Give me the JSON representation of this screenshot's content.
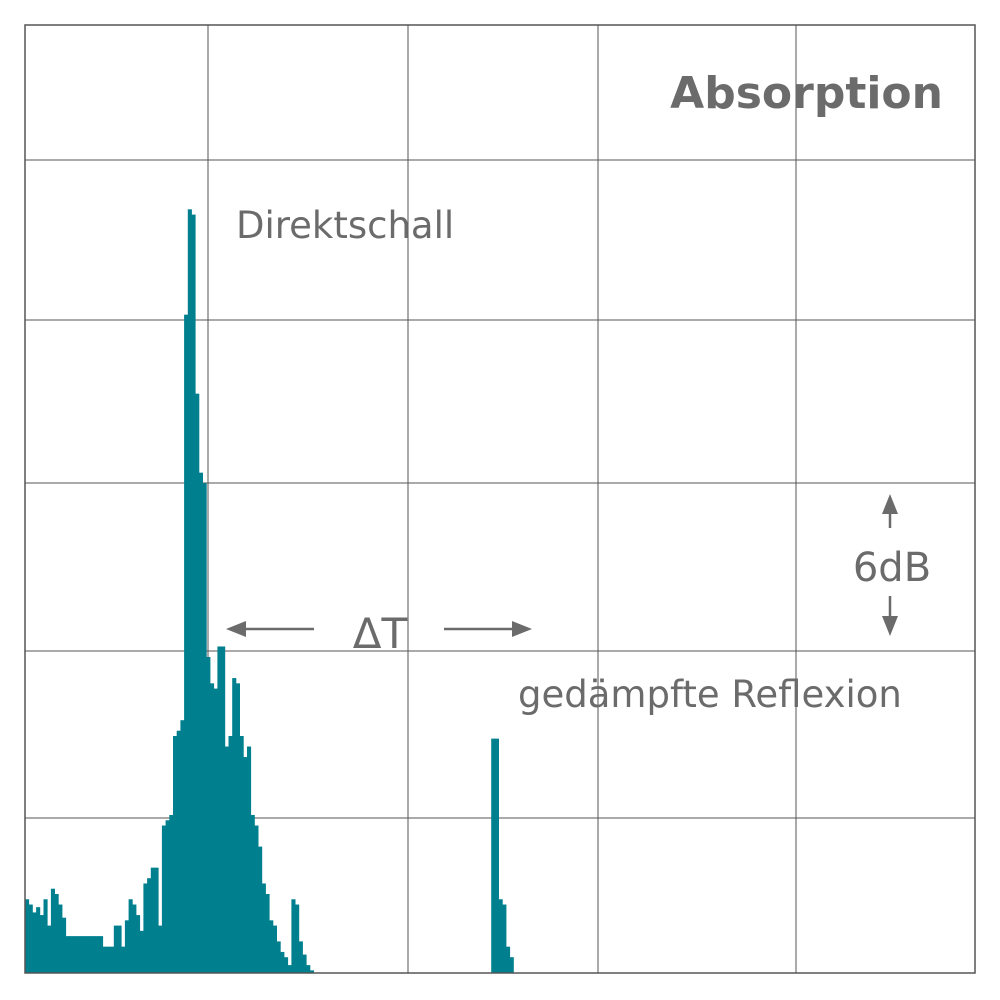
{
  "chart_data": {
    "type": "bar",
    "title": "Absorption",
    "xlabel": "",
    "ylabel": "",
    "grid": true,
    "grid_columns": 5,
    "grid_rows": 6,
    "xlim": [
      0,
      160
    ],
    "ylim": [
      0,
      36
    ],
    "bar_color": "#00808f",
    "values": [
      2.8,
      2.6,
      2.3,
      2.5,
      2.2,
      2.8,
      1.8,
      3.2,
      3.0,
      2.6,
      2.1,
      1.4,
      1.4,
      1.4,
      1.4,
      1.4,
      1.4,
      1.4,
      1.4,
      1.4,
      1.4,
      1.0,
      1.0,
      1.0,
      1.8,
      1.8,
      1.0,
      2.0,
      2.8,
      2.6,
      2.2,
      1.6,
      3.4,
      3.6,
      4.0,
      4.0,
      1.8,
      5.6,
      5.8,
      6.0,
      9.0,
      9.2,
      9.6,
      25.0,
      29.0,
      28.8,
      22.0,
      19.0,
      18.6,
      12.0,
      11.0,
      10.8,
      12.4,
      12.4,
      8.6,
      9.0,
      11.2,
      11.0,
      9.0,
      8.2,
      8.6,
      6.0,
      5.6,
      4.8,
      3.4,
      3.0,
      2.0,
      1.8,
      1.2,
      0.8,
      0.6,
      0.3,
      2.8,
      2.6,
      1.2,
      0.7,
      0.3,
      0.1,
      0.0,
      0.0,
      0.0,
      0.0,
      0.0,
      0.0,
      0.0,
      0.0,
      0.0,
      0.0,
      0.0,
      0.0,
      0.0,
      0.0,
      0.0,
      0.0,
      0.0,
      0.0,
      0.0,
      0.0,
      0.0,
      0.0,
      0.0,
      0.0,
      0.0,
      0.0,
      0.0,
      0.0,
      0.0,
      0.0,
      0.0,
      0.0,
      0.0,
      0.0,
      0.0,
      0.0,
      0.0,
      0.0,
      0.0,
      0.0,
      0.0,
      0.0,
      0.0,
      0.0,
      0.0,
      0.0,
      0.0,
      0.0,
      8.9,
      8.9,
      2.8,
      2.6,
      1.0,
      0.6,
      0.0,
      0.0,
      0.0,
      0.0,
      0.0,
      0.0,
      0.0,
      0.0,
      0.0,
      0.0,
      0.0,
      0.0,
      0.0,
      0.0,
      0.0,
      0.0,
      0.0,
      0.0,
      0.0,
      0.0,
      0.0,
      0.0,
      0.0,
      0.0,
      0.0,
      0.0,
      0.0,
      0.0
    ],
    "annotations": {
      "direct": "Direktschall",
      "reflection": "gedämpfte Reflexion",
      "delta": "ΔT",
      "scale": "6dB"
    },
    "colors": {
      "grid": "#555555",
      "text": "#6b6b6b",
      "bars": "#00808f"
    }
  }
}
